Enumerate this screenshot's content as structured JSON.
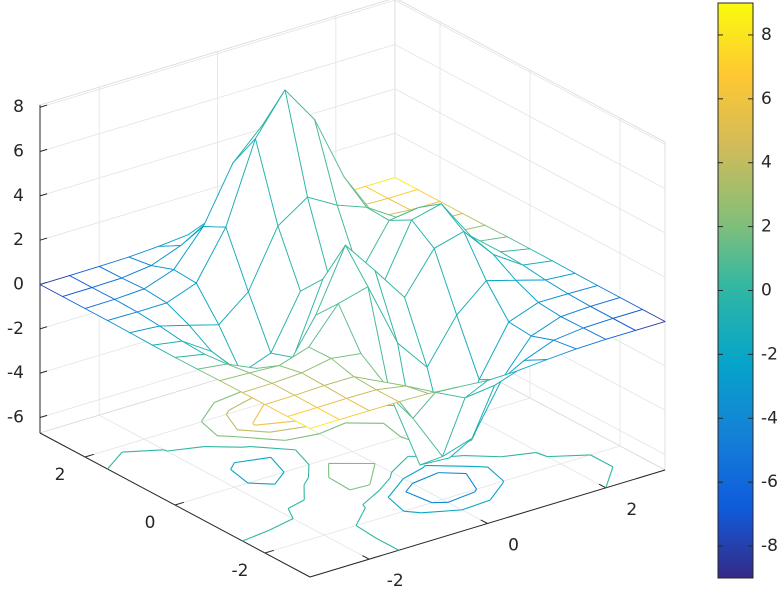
{
  "chart_data": {
    "type": "mesh",
    "x": [
      -3,
      -2.5,
      -2,
      -1.5,
      -1,
      -0.5,
      0,
      0.5,
      1,
      1.5,
      2,
      2.5,
      3
    ],
    "y": [
      -3,
      -2.5,
      -2,
      -1.5,
      -1,
      -0.5,
      0,
      0.5,
      1,
      1.5,
      2,
      2.5,
      3
    ],
    "z": [
      [
        0,
        0,
        0,
        0,
        -0.03,
        -0.14,
        -0.25,
        -0.22,
        -0.11,
        -0.03,
        0,
        0,
        0
      ],
      [
        0,
        0,
        0.01,
        0,
        -0.23,
        -0.92,
        -1.57,
        -1.41,
        -0.69,
        -0.18,
        -0.03,
        0,
        0
      ],
      [
        0,
        0.01,
        0.05,
        0.05,
        -0.59,
        -2.63,
        -4.76,
        -4.34,
        -2.1,
        -0.53,
        -0.06,
        0,
        0
      ],
      [
        0,
        0.01,
        0.08,
        0.33,
        0.15,
        -2.19,
        -5.68,
        -5.76,
        -2.64,
        -0.44,
        0.04,
        0.03,
        0
      ],
      [
        -0.01,
        -0.06,
        -0.13,
        0.3,
        1.86,
        2.22,
        -0.72,
        -2.22,
        -0.27,
        0.88,
        0.5,
        0.11,
        0.01
      ],
      [
        -0.03,
        -0.2,
        -0.8,
        -1.21,
        0.8,
        3.55,
        2.0,
        0.39,
        2.2,
        2.56,
        1.12,
        0.24,
        0.03
      ],
      [
        -0.04,
        -0.3,
        -1.33,
        -2.77,
        -1.65,
        1.48,
        0.98,
        0.37,
        2.94,
        3.27,
        1.41,
        0.3,
        0.03
      ],
      [
        -0.03,
        -0.25,
        -1.12,
        -2.49,
        -2.0,
        0.39,
        0.46,
        0.38,
        2.38,
        2.56,
        1.09,
        0.23,
        0.03
      ],
      [
        -0.01,
        -0.11,
        -0.48,
        -0.86,
        0.23,
        2.79,
        3.69,
        2.93,
        2.43,
        1.58,
        0.58,
        0.11,
        0.01
      ],
      [
        0,
        -0.02,
        -0.01,
        0.48,
        2.6,
        6.19,
        7.99,
        6.25,
        3.25,
        1.19,
        0.29,
        0.05,
        0
      ],
      [
        0,
        0.01,
        0.08,
        0.55,
        2.09,
        4.55,
        5.86,
        4.56,
        2.21,
        0.68,
        0.13,
        0.02,
        0
      ],
      [
        0,
        0,
        0.03,
        0.19,
        0.69,
        1.47,
        1.88,
        1.47,
        0.7,
        0.2,
        0.04,
        0,
        0
      ],
      [
        0,
        0,
        0.01,
        0.03,
        0.11,
        0.23,
        0.3,
        0.23,
        0.11,
        0.03,
        0.01,
        0,
        0
      ]
    ],
    "c": [
      [
        9,
        7.5,
        6,
        4.5,
        3,
        1.5,
        0,
        -1.5,
        -3,
        -4.5,
        -6,
        -7.5,
        -9
      ],
      [
        7.5,
        6.25,
        5,
        3.75,
        2.5,
        1.25,
        0,
        -1.25,
        -2.5,
        -3.75,
        -5,
        -6.25,
        -7.5
      ],
      [
        6,
        5,
        4,
        3,
        2,
        1,
        0,
        -1,
        -2,
        -3,
        -4,
        -5,
        -6
      ],
      [
        4.5,
        3.75,
        3,
        2.25,
        1.5,
        0.75,
        0,
        -0.75,
        -1.5,
        -2.25,
        -3,
        -3.75,
        -4.5
      ],
      [
        3,
        2.5,
        2,
        1.5,
        1,
        0.5,
        0,
        -0.5,
        -1,
        -1.5,
        -2,
        -2.5,
        -3
      ],
      [
        1.5,
        1.25,
        1,
        0.75,
        0.5,
        0.25,
        0,
        -0.25,
        -0.5,
        -0.75,
        -1,
        -1.25,
        -1.5
      ],
      [
        0,
        0,
        0,
        0,
        0,
        0,
        0,
        0,
        0,
        0,
        0,
        0,
        0
      ],
      [
        -1.5,
        -1.25,
        -1,
        -0.75,
        -0.5,
        -0.25,
        0,
        0.25,
        0.5,
        0.75,
        1,
        1.25,
        1.5
      ],
      [
        -3,
        -2.5,
        -2,
        -1.5,
        -1,
        -0.5,
        0,
        0.5,
        1,
        1.5,
        2,
        2.5,
        3
      ],
      [
        -4.5,
        -3.75,
        -3,
        -2.25,
        -1.5,
        -0.75,
        0,
        0.75,
        1.5,
        2.25,
        3,
        3.75,
        4.5
      ],
      [
        -6,
        -5,
        -4,
        -3,
        -2,
        -1,
        0,
        1,
        2,
        3,
        4,
        5,
        6
      ],
      [
        -7.5,
        -6.25,
        -5,
        -3.75,
        -2.5,
        -1.25,
        0,
        1.25,
        2.5,
        3.75,
        5,
        6.25,
        7.5
      ],
      [
        -9,
        -7.5,
        -6,
        -4.5,
        -3,
        -1.5,
        0,
        1.5,
        3,
        4.5,
        6,
        7.5,
        9
      ]
    ],
    "xlim": [
      -3,
      3
    ],
    "ylim": [
      -3,
      3
    ],
    "zlim": [
      -6.7,
      8.1
    ],
    "xticks": [
      -2,
      0,
      2
    ],
    "yticks": [
      -2,
      0,
      2
    ],
    "zticks": [
      -6,
      -4,
      -2,
      0,
      2,
      4,
      6,
      8
    ],
    "contour_levels": [
      -6,
      -4,
      -2,
      0,
      2,
      4,
      6
    ],
    "clim": [
      -9,
      9
    ],
    "colorbar_ticks": [
      -8,
      -6,
      -4,
      -2,
      0,
      2,
      4,
      6,
      8
    ],
    "colormap": [
      "#352a87",
      "#0f5cdd",
      "#1481d6",
      "#06a4ca",
      "#2eb7a4",
      "#87bf77",
      "#d1bb59",
      "#fec832",
      "#f9fb0e"
    ],
    "grid": true
  }
}
